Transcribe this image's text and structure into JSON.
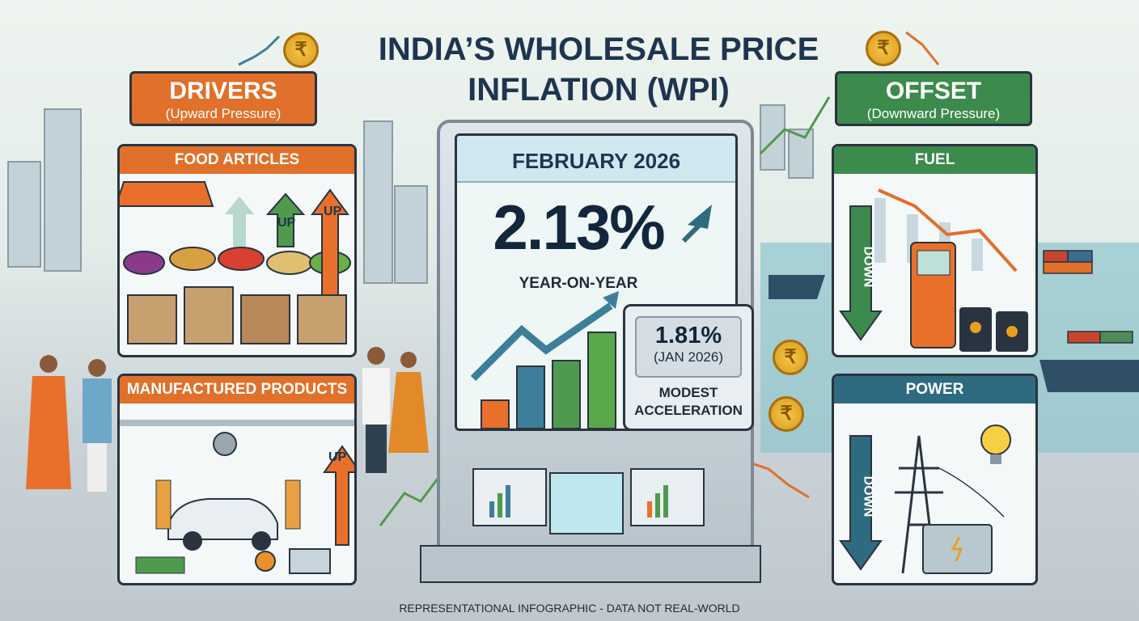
{
  "title": {
    "line1": "INDIA’S WHOLESALE PRICE",
    "line2": "INFLATION (WPI)"
  },
  "coin_symbol": "₹",
  "drivers": {
    "title": "DRIVERS",
    "subtitle": "(Upward Pressure)",
    "color": "#e0702a",
    "panels": [
      {
        "header": "FOOD ARTICLES",
        "labels": [
          "UP",
          "UP"
        ]
      },
      {
        "header": "MANUFACTURED PRODUCTS",
        "labels": [
          "UP"
        ]
      }
    ]
  },
  "offset": {
    "title": "OFFSET",
    "subtitle": "(Downward Pressure)",
    "color": "#3c8a4c",
    "panels": [
      {
        "header": "FUEL",
        "labels": [
          "DOWN"
        ]
      },
      {
        "header": "POWER",
        "labels": [
          "DOWN"
        ]
      }
    ]
  },
  "main": {
    "month": "FEBRUARY 2026",
    "value": "2.13%",
    "caption": "YEAR-ON-YEAR",
    "previous": {
      "value": "1.81%",
      "date": "(JAN 2026)",
      "note_line1": "MODEST",
      "note_line2": "ACCELERATION"
    },
    "bars": [
      0.25,
      0.55,
      0.6,
      0.85
    ],
    "bar_colors": [
      "#e8702a",
      "#3d7f9a",
      "#4f9a4c",
      "#5aa84a"
    ]
  },
  "footer": "REPRESENTATIONAL INFOGRAPHIC - DATA NOT REAL-WORLD"
}
